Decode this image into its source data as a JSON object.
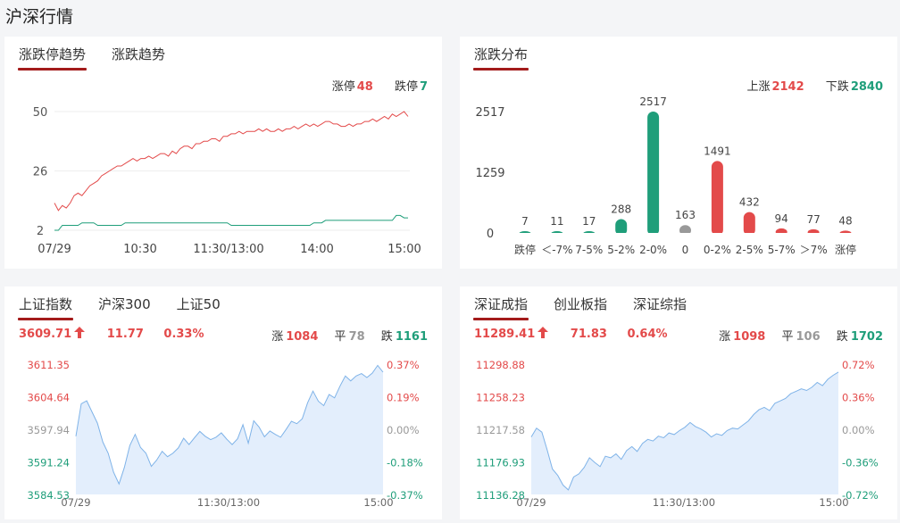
{
  "page_title": "沪深行情",
  "trend_card": {
    "tabs": [
      "涨跌停趋势",
      "涨跌趋势"
    ],
    "limit_up_label": "涨停",
    "limit_up_value": "48",
    "limit_down_label": "跌停",
    "limit_down_value": "7",
    "colors": {
      "limit_up": "#e34a4a",
      "limit_down": "#1f9e7a"
    }
  },
  "dist_card": {
    "tabs": [
      "涨跌分布"
    ],
    "up_label": "上涨",
    "up_value": "2142",
    "down_label": "下跌",
    "down_value": "2840"
  },
  "sh_card": {
    "tabs": [
      "上证指数",
      "沪深300",
      "上证50"
    ],
    "price": "3609.71",
    "change": "11.77",
    "change_pct": "0.33%",
    "rise_label": "涨",
    "rise_value": "1084",
    "flat_label": "平",
    "flat_value": "78",
    "fall_label": "跌",
    "fall_value": "1161"
  },
  "sz_card": {
    "tabs": [
      "深证成指",
      "创业板指",
      "深证综指"
    ],
    "price": "11289.41",
    "change": "71.83",
    "change_pct": "0.64%",
    "rise_label": "涨",
    "rise_value": "1098",
    "flat_label": "平",
    "flat_value": "106",
    "fall_label": "跌",
    "fall_value": "1702"
  },
  "chart_data": [
    {
      "id": "limit-trend",
      "type": "line",
      "x_ticks": [
        "07/29",
        "10:30",
        "11:30/13:00",
        "14:00",
        "15:00"
      ],
      "y_ticks": [
        "50",
        "26",
        "2"
      ],
      "ylim": [
        2,
        50
      ],
      "grid": true,
      "series": [
        {
          "name": "涨停",
          "color": "#e34a4a",
          "values": [
            13,
            10,
            12,
            11,
            13,
            16,
            17,
            16,
            18,
            20,
            21,
            22,
            24,
            25,
            26,
            27,
            28,
            28,
            29,
            30,
            31,
            30,
            31,
            31,
            32,
            31,
            32,
            33,
            33,
            32,
            34,
            33,
            35,
            36,
            36,
            35,
            37,
            37,
            38,
            38,
            39,
            39,
            38,
            40,
            40,
            41,
            41,
            42,
            41,
            42,
            42,
            42,
            43,
            42,
            43,
            42,
            42,
            43,
            42,
            43,
            43,
            44,
            43,
            44,
            45,
            44,
            45,
            44,
            45,
            46,
            46,
            45,
            45,
            44,
            44,
            45,
            44,
            45,
            45,
            46,
            46,
            47,
            46,
            47,
            48,
            47,
            49,
            48,
            49,
            50,
            48
          ]
        },
        {
          "name": "跌停",
          "color": "#1f9e7a",
          "values": [
            2,
            2,
            4,
            4,
            4,
            4,
            4,
            5,
            5,
            5,
            5,
            4,
            4,
            4,
            4,
            4,
            4,
            4,
            5,
            5,
            5,
            5,
            5,
            5,
            5,
            5,
            5,
            5,
            5,
            5,
            5,
            5,
            5,
            5,
            5,
            5,
            5,
            5,
            5,
            5,
            5,
            5,
            5,
            5,
            5,
            4,
            4,
            4,
            4,
            4,
            4,
            4,
            4,
            4,
            4,
            4,
            4,
            4,
            4,
            4,
            4,
            4,
            4,
            4,
            4,
            4,
            5,
            5,
            5,
            6,
            6,
            6,
            6,
            6,
            6,
            6,
            6,
            6,
            6,
            6,
            6,
            6,
            6,
            6,
            6,
            6,
            6,
            8,
            8,
            7,
            7
          ]
        }
      ]
    },
    {
      "id": "up-down-distribution",
      "type": "bar",
      "categories": [
        "跌停",
        "＜-7%",
        "7-5%",
        "5-2%",
        "2-0%",
        "0",
        "0-2%",
        "2-5%",
        "5-7%",
        "＞7%",
        "涨停"
      ],
      "values": [
        7,
        11,
        17,
        288,
        2517,
        163,
        1491,
        432,
        94,
        77,
        48
      ],
      "colors": [
        "#1f9e7a",
        "#1f9e7a",
        "#1f9e7a",
        "#1f9e7a",
        "#1f9e7a",
        "#999999",
        "#e34a4a",
        "#e34a4a",
        "#e34a4a",
        "#e34a4a",
        "#e34a4a"
      ],
      "y_ticks": [
        "2517",
        "1259",
        "0"
      ],
      "ylim": [
        0,
        2517
      ]
    },
    {
      "id": "sh-index",
      "type": "area",
      "x_ticks": [
        "07/29",
        "11:30/13:00",
        "15:00"
      ],
      "y_ticks_left": [
        "3611.35",
        "3604.64",
        "3597.94",
        "3591.24",
        "3584.53"
      ],
      "y_ticks_right": [
        "0.37%",
        "0.19%",
        "0.00%",
        "-0.18%",
        "-0.37%"
      ],
      "ylim": [
        3584.53,
        3611.35
      ],
      "color": "#7fb3e8",
      "values": [
        3596.5,
        3603.2,
        3603.8,
        3601.5,
        3599.2,
        3595.3,
        3593.0,
        3589.1,
        3586.7,
        3590.1,
        3594.6,
        3596.9,
        3594.2,
        3593.0,
        3590.3,
        3591.6,
        3593.4,
        3592.3,
        3593.0,
        3594.1,
        3596.1,
        3594.8,
        3596.2,
        3597.5,
        3596.5,
        3595.8,
        3596.3,
        3597.2,
        3595.9,
        3594.8,
        3596.0,
        3598.9,
        3595.1,
        3599.7,
        3598.4,
        3596.4,
        3597.6,
        3596.9,
        3596.3,
        3597.9,
        3599.6,
        3599.1,
        3600.1,
        3603.4,
        3605.8,
        3603.7,
        3602.8,
        3605.1,
        3604.4,
        3606.8,
        3608.9,
        3607.9,
        3608.9,
        3609.4,
        3608.6,
        3609.5,
        3611.1,
        3609.7
      ]
    },
    {
      "id": "sz-index",
      "type": "area",
      "x_ticks": [
        "07/29",
        "11:30/13:00",
        "15:00"
      ],
      "y_ticks_left": [
        "11298.88",
        "11258.23",
        "11217.58",
        "11176.93",
        "11136.28"
      ],
      "y_ticks_right": [
        "0.72%",
        "0.36%",
        "0.00%",
        "-0.36%",
        "-0.72%"
      ],
      "ylim": [
        11136.28,
        11298.88
      ],
      "color": "#7fb3e8",
      "values": [
        11208.0,
        11219.0,
        11214.0,
        11192.0,
        11168.0,
        11160.0,
        11148.0,
        11142.0,
        11158.0,
        11162.0,
        11170.0,
        11182.0,
        11176.0,
        11171.0,
        11184.0,
        11182.0,
        11187.0,
        11180.0,
        11191.0,
        11196.0,
        11190.0,
        11200.0,
        11205.0,
        11203.0,
        11209.0,
        11207.0,
        11213.0,
        11211.0,
        11216.0,
        11220.0,
        11226.0,
        11221.0,
        11218.0,
        11214.0,
        11208.0,
        11212.0,
        11210.0,
        11216.0,
        11219.0,
        11218.0,
        11223.0,
        11228.0,
        11236.0,
        11242.0,
        11245.0,
        11241.0,
        11250.0,
        11253.0,
        11256.0,
        11262.0,
        11265.0,
        11268.0,
        11266.0,
        11270.0,
        11276.0,
        11272.0,
        11280.0,
        11285.0,
        11289.0
      ]
    }
  ]
}
